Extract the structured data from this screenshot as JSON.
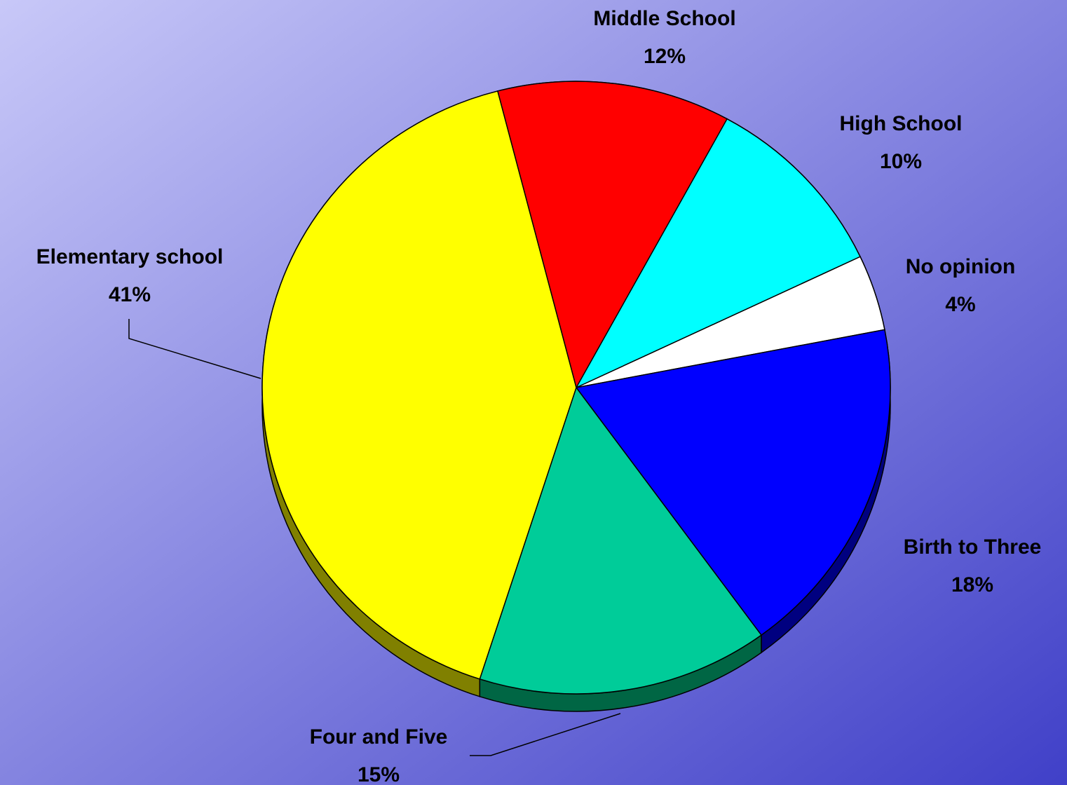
{
  "chart_data": {
    "type": "pie",
    "categories": [
      "Middle School",
      "High School",
      "No opinion",
      "Birth to Three",
      "Four and Five",
      "Elementary school"
    ],
    "values": [
      12,
      10,
      4,
      18,
      15,
      41
    ],
    "value_labels": [
      "12%",
      "10%",
      "4%",
      "18%",
      "15%",
      "41%"
    ],
    "colors": [
      "#ff0000",
      "#00ffff",
      "#ffffff",
      "#0000ff",
      "#00cc99",
      "#ffff00"
    ],
    "side_colors": [
      "#800000",
      "#008080",
      "#808080",
      "#000080",
      "#006644",
      "#808000"
    ]
  }
}
